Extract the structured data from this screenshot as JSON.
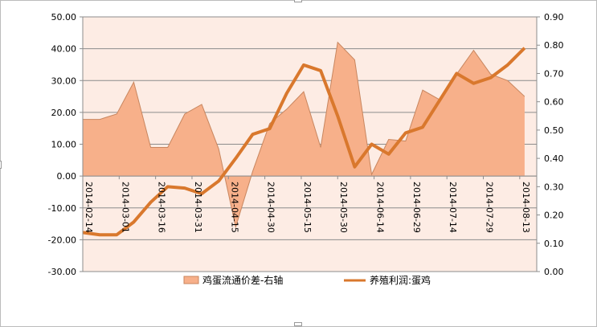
{
  "chart_data": {
    "type": "area+line",
    "left_axis": {
      "min": -30,
      "max": 50,
      "step": 10,
      "tick_labels": [
        "-30.00",
        "-20.00",
        "-10.00",
        "0.00",
        "10.00",
        "20.00",
        "30.00",
        "40.00",
        "50.00"
      ]
    },
    "right_axis": {
      "min": 0,
      "max": 0.9,
      "step": 0.1,
      "tick_labels": [
        "0.00",
        "0.10",
        "0.20",
        "0.30",
        "0.40",
        "0.50",
        "0.60",
        "0.70",
        "0.80",
        "0.90"
      ]
    },
    "x_axis": {
      "start": "2014-02-14",
      "end": "2014-08-20",
      "tick_labels": [
        "2014-02-14",
        "2014-03-01",
        "2014-03-16",
        "2014-03-31",
        "2014-04-15",
        "2014-04-30",
        "2014-05-15",
        "2014-05-30",
        "2014-06-14",
        "2014-06-29",
        "2014-07-14",
        "2014-07-29",
        "2014-08-13"
      ]
    },
    "series": [
      {
        "name": "鸡蛋流通价差-右轴",
        "type": "area",
        "axis": "left",
        "color": "#f7b08a",
        "edge_color": "#c8865f",
        "points": [
          [
            "2014-02-14",
            17.8
          ],
          [
            "2014-02-21",
            17.8
          ],
          [
            "2014-02-28",
            19.5
          ],
          [
            "2014-03-07",
            29.5
          ],
          [
            "2014-03-14",
            9.0
          ],
          [
            "2014-03-21",
            9.0
          ],
          [
            "2014-03-28",
            19.5
          ],
          [
            "2014-04-04",
            22.5
          ],
          [
            "2014-04-11",
            8.5
          ],
          [
            "2014-04-18",
            -16.0
          ],
          [
            "2014-04-25",
            1.5
          ],
          [
            "2014-05-02",
            16.5
          ],
          [
            "2014-05-09",
            21.0
          ],
          [
            "2014-05-16",
            26.5
          ],
          [
            "2014-05-23",
            9.0
          ],
          [
            "2014-05-30",
            42.0
          ],
          [
            "2014-06-06",
            36.5
          ],
          [
            "2014-06-13",
            0.5
          ],
          [
            "2014-06-20",
            11.5
          ],
          [
            "2014-06-27",
            11.0
          ],
          [
            "2014-07-04",
            27.0
          ],
          [
            "2014-07-11",
            24.0
          ],
          [
            "2014-07-18",
            32.0
          ],
          [
            "2014-07-25",
            39.5
          ],
          [
            "2014-08-01",
            32.0
          ],
          [
            "2014-08-08",
            30.0
          ],
          [
            "2014-08-15",
            25.0
          ]
        ]
      },
      {
        "name": "养殖利润:蛋鸡",
        "type": "line",
        "axis": "right",
        "color": "#d9782d",
        "points": [
          [
            "2014-02-14",
            0.138
          ],
          [
            "2014-02-21",
            0.13
          ],
          [
            "2014-02-28",
            0.13
          ],
          [
            "2014-03-07",
            0.175
          ],
          [
            "2014-03-14",
            0.245
          ],
          [
            "2014-03-21",
            0.3
          ],
          [
            "2014-03-28",
            0.295
          ],
          [
            "2014-04-04",
            0.275
          ],
          [
            "2014-04-11",
            0.32
          ],
          [
            "2014-04-18",
            0.4
          ],
          [
            "2014-04-25",
            0.485
          ],
          [
            "2014-05-02",
            0.505
          ],
          [
            "2014-05-09",
            0.63
          ],
          [
            "2014-05-16",
            0.73
          ],
          [
            "2014-05-23",
            0.71
          ],
          [
            "2014-05-30",
            0.55
          ],
          [
            "2014-06-06",
            0.37
          ],
          [
            "2014-06-13",
            0.45
          ],
          [
            "2014-06-20",
            0.415
          ],
          [
            "2014-06-27",
            0.49
          ],
          [
            "2014-07-04",
            0.51
          ],
          [
            "2014-07-11",
            0.605
          ],
          [
            "2014-07-18",
            0.7
          ],
          [
            "2014-07-25",
            0.665
          ],
          [
            "2014-08-01",
            0.685
          ],
          [
            "2014-08-08",
            0.73
          ],
          [
            "2014-08-15",
            0.79
          ]
        ]
      }
    ],
    "plot_background": "#fdece4",
    "grid": true,
    "legend_position": "bottom"
  }
}
